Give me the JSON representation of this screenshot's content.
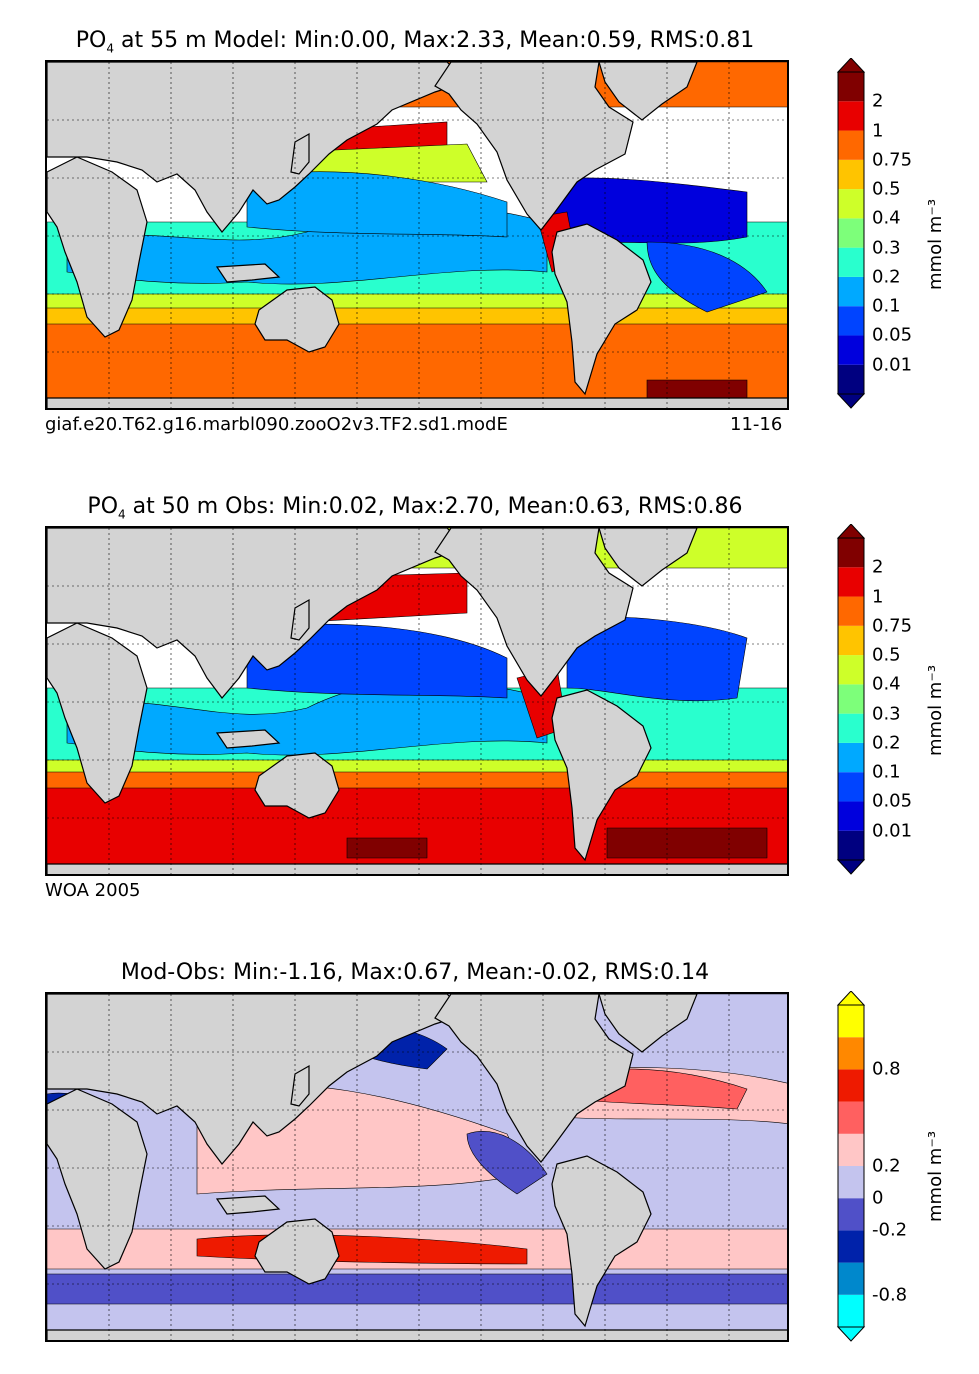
{
  "chart_data": [
    {
      "type": "heatmap",
      "title": "PO4  at 55 m Model: Min:0.00, Max:2.33, Mean:0.59, RMS:0.81",
      "title_parts": {
        "var": "PO",
        "sub": "4",
        "rest": " at 55 m Model: Min:0.00, Max:2.33, Mean:0.59, RMS:0.81"
      },
      "caption_left": "giaf.e20.T62.g16.marbl090.zooO2v3.TF2.sd1.modE",
      "caption_right": "11-16",
      "colorbar_label": "mmol m⁻³",
      "colorbar_ticks": [
        "0.01",
        "0.05",
        "0.1",
        "0.2",
        "0.3",
        "0.4",
        "0.5",
        "0.75",
        "1",
        "2"
      ],
      "stats": {
        "min": 0.0,
        "max": 2.33,
        "mean": 0.59,
        "rms": 0.81
      }
    },
    {
      "type": "heatmap",
      "title": "PO4  at 50 m Obs: Min:0.02, Max:2.70, Mean:0.63, RMS:0.86",
      "title_parts": {
        "var": "PO",
        "sub": "4",
        "rest": " at 50 m Obs: Min:0.02, Max:2.70, Mean:0.63, RMS:0.86"
      },
      "caption_left": "WOA 2005",
      "caption_right": "",
      "colorbar_label": "mmol m⁻³",
      "colorbar_ticks": [
        "0.01",
        "0.05",
        "0.1",
        "0.2",
        "0.3",
        "0.4",
        "0.5",
        "0.75",
        "1",
        "2"
      ],
      "stats": {
        "min": 0.02,
        "max": 2.7,
        "mean": 0.63,
        "rms": 0.86
      }
    },
    {
      "type": "heatmap",
      "title": "Mod-Obs: Min:-1.16, Max:0.67, Mean:-0.02, RMS:0.14",
      "colorbar_label": "mmol m⁻³",
      "colorbar_ticks": [
        "-0.8",
        "-0.2",
        "0",
        "0.2",
        "0.8"
      ],
      "stats": {
        "min": -1.16,
        "max": 0.67,
        "mean": -0.02,
        "rms": 0.14
      }
    }
  ],
  "colors": {
    "land": "#d3d3d3",
    "seq": [
      "#000080",
      "#0000dd",
      "#0044ff",
      "#00a9ff",
      "#29ffce",
      "#7dff7a",
      "#ceff29",
      "#ffc400",
      "#ff6800",
      "#e80000",
      "#800000"
    ],
    "div": [
      "#00ffff",
      "#0088cc",
      "#0022aa",
      "#5050c8",
      "#c4c4ee",
      "#ffc6c6",
      "#ff6060",
      "#ee1a00",
      "#ff8800",
      "#ffff00"
    ]
  }
}
